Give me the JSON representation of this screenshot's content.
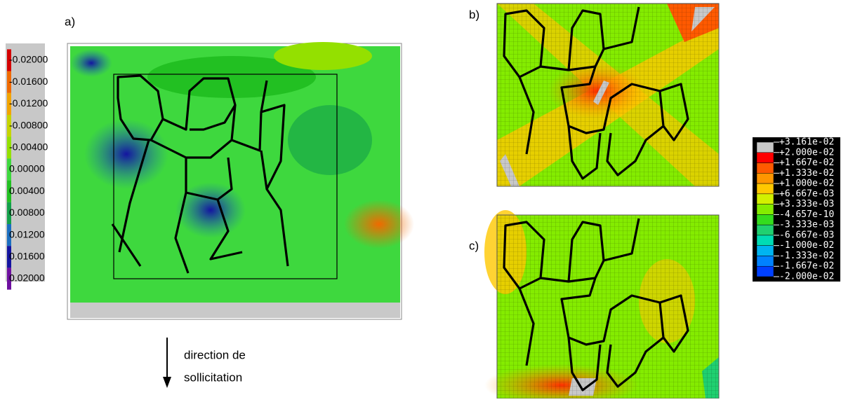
{
  "panels": {
    "a": "a)",
    "b": "b)",
    "c": "c)"
  },
  "scale_a": {
    "labels": [
      "-0.02000",
      "-0.01600",
      "-0.01200",
      "-0.00800",
      "-0.00400",
      "0.00000",
      "0.00400",
      "0.00800",
      "0.01200",
      "0.01600",
      "0.02000"
    ],
    "colors": [
      "#d40000",
      "#f06a00",
      "#f2a400",
      "#c6d400",
      "#94e000",
      "#3ed83e",
      "#22c022",
      "#13a04a",
      "#1a6ec0",
      "#1414a0",
      "#6e10a0"
    ]
  },
  "scale_b": {
    "labels": [
      "+3.161e-02",
      "+2.000e-02",
      "+1.667e-02",
      "+1.333e-02",
      "+1.000e-02",
      "+6.667e-03",
      "+3.333e-03",
      "-4.657e-10",
      "-3.333e-03",
      "-6.667e-03",
      "-1.000e-02",
      "-1.333e-02",
      "-1.667e-02",
      "-2.000e-02"
    ],
    "colors": [
      "#c8c8c8",
      "#ff0000",
      "#ff5a00",
      "#ff9600",
      "#ffc800",
      "#d2f000",
      "#84ec00",
      "#34dc1e",
      "#20d070",
      "#00dcb4",
      "#00b4f0",
      "#0082ff",
      "#0040ff"
    ]
  },
  "arrow_text": [
    "direction de",
    "sollicitation"
  ]
}
